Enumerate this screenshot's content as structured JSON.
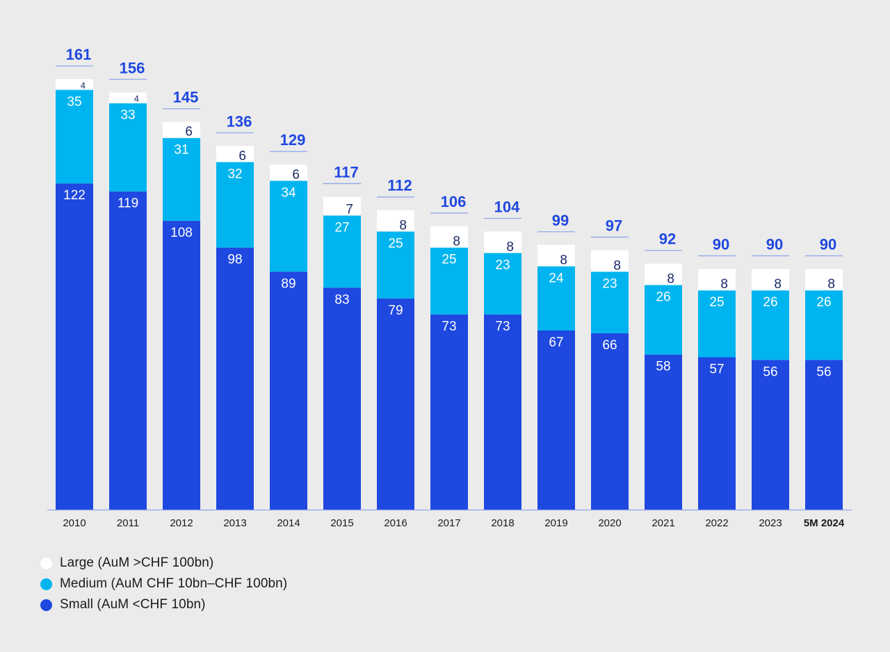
{
  "chart_data": {
    "type": "bar",
    "stacked": true,
    "categories": [
      "2010",
      "2011",
      "2012",
      "2013",
      "2014",
      "2015",
      "2016",
      "2017",
      "2018",
      "2019",
      "2020",
      "2021",
      "2022",
      "2023",
      "5M 2024"
    ],
    "emphasized_category": "5M 2024",
    "series": [
      {
        "name": "Small (AuM <CHF 10bn)",
        "color": "#1f48e0",
        "values": [
          122,
          119,
          108,
          98,
          89,
          83,
          79,
          73,
          73,
          67,
          66,
          58,
          57,
          56,
          56
        ]
      },
      {
        "name": "Medium (AuM CHF 10bn–CHF 100bn)",
        "color": "#00b5ef",
        "values": [
          35,
          33,
          31,
          32,
          34,
          27,
          25,
          25,
          23,
          24,
          23,
          26,
          25,
          26,
          26
        ]
      },
      {
        "name": "Large (AuM >CHF 100bn)",
        "color": "#ffffff",
        "values": [
          4,
          4,
          6,
          6,
          6,
          7,
          8,
          8,
          8,
          8,
          8,
          8,
          8,
          8,
          8
        ]
      }
    ],
    "totals": [
      161,
      156,
      145,
      136,
      129,
      117,
      112,
      106,
      104,
      99,
      97,
      92,
      90,
      90,
      90
    ],
    "total_label_color": "#1f48e0",
    "axis_color": "#8fa8e8",
    "ylim": [
      0,
      161
    ],
    "grid": false,
    "legend_position": "bottom-left",
    "legend_order": [
      "Large (AuM >CHF 100bn)",
      "Medium (AuM CHF 10bn–CHF 100bn)",
      "Small (AuM <CHF 10bn)"
    ],
    "title": "",
    "xlabel": "",
    "ylabel": ""
  }
}
